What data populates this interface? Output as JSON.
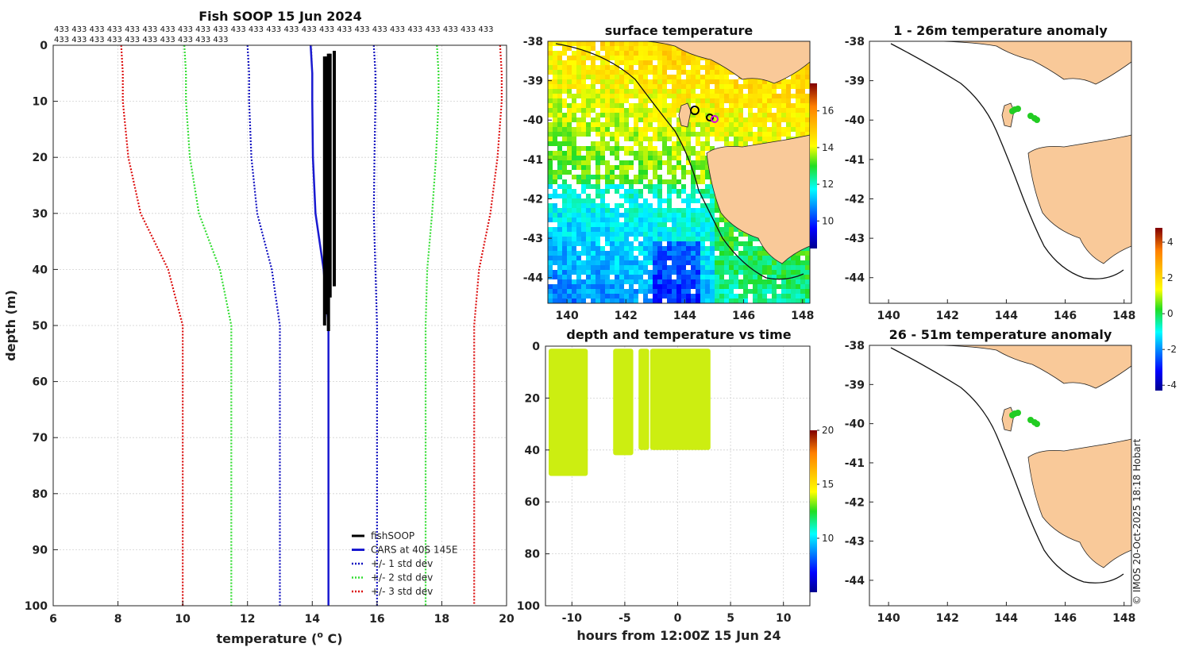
{
  "colors": {
    "fish": "#000000",
    "cars": "#1a1ad0",
    "std1": "#1010c0",
    "std2": "#33dd33",
    "std3": "#dd1111",
    "land": "#f9c999",
    "grid": "#d0d0d0"
  },
  "credit": "© IMOS 20-Oct-2025 18:18 Hobart",
  "chart_data": [
    {
      "type": "line",
      "title": "Fish SOOP 15 Jun 2024",
      "count_label": "433",
      "count_repeat": 35,
      "xlabel": "temperature (",
      "xlabel_sup": "o",
      "xlabel_suffix": " C)",
      "ylabel": "depth (m)",
      "xlim": [
        6,
        20
      ],
      "ylim": [
        0,
        100
      ],
      "xticks": [
        6,
        8,
        10,
        12,
        14,
        16,
        18,
        20
      ],
      "yticks": [
        0,
        10,
        20,
        30,
        40,
        50,
        60,
        70,
        80,
        90,
        100
      ],
      "depth": [
        0,
        5,
        10,
        20,
        30,
        40,
        50,
        60,
        70,
        80,
        90,
        100
      ],
      "cars_mean": [
        13.95,
        14.0,
        14.0,
        14.02,
        14.1,
        14.35,
        14.5,
        14.5,
        14.5,
        14.5,
        14.5,
        14.5
      ],
      "std_offsets": {
        "std1": [
          1.95,
          1.95,
          1.95,
          1.9,
          1.8,
          1.6,
          1.5,
          1.5,
          1.5,
          1.5,
          1.5,
          1.5
        ]
      },
      "legend": [
        "fishSOOP",
        "CARS at 40S 145E",
        "+/- 1 std dev",
        "+/- 2 std dev",
        "+/- 3 std dev"
      ],
      "fishsoop_profiles": [
        {
          "t": 14.38,
          "top": 2,
          "bottom": 50
        },
        {
          "t": 14.5,
          "top": 1.5,
          "bottom": 51
        },
        {
          "t": 14.55,
          "top": 1.5,
          "bottom": 45
        },
        {
          "t": 14.68,
          "top": 1,
          "bottom": 43
        },
        {
          "t": 14.45,
          "top": 2,
          "bottom": 48
        }
      ]
    },
    {
      "type": "heatmap",
      "title": "surface temperature",
      "xticks": [
        140,
        142,
        144,
        146,
        148
      ],
      "yticks": [
        -38,
        -39,
        -40,
        -41,
        -42,
        -43,
        -44
      ],
      "colorbar_ticks": [
        10,
        12,
        14,
        16
      ],
      "colorbar_range": [
        8.5,
        17.5
      ]
    },
    {
      "type": "scatter",
      "title": "depth and temperature vs time",
      "xlabel": "hours from 12:00Z 15 Jun 24",
      "xlim": [
        -12.5,
        12.5
      ],
      "ylim": [
        0,
        100
      ],
      "xticks": [
        -10,
        -5,
        0,
        5,
        10
      ],
      "yticks": [
        0,
        20,
        40,
        60,
        80,
        100
      ],
      "colorbar_ticks": [
        10,
        15,
        20
      ],
      "colorbar_range": [
        5,
        20
      ],
      "blocks": [
        {
          "x0": -12.2,
          "x1": -8.5,
          "y0": 1,
          "y1": 50,
          "temp": 14.3
        },
        {
          "x0": -6.1,
          "x1": -4.2,
          "y0": 1,
          "y1": 42,
          "temp": 14.3
        },
        {
          "x0": -3.7,
          "x1": -2.7,
          "y0": 1,
          "y1": 40,
          "temp": 14.3
        },
        {
          "x0": -2.6,
          "x1": 3.1,
          "y0": 1,
          "y1": 40,
          "temp": 14.4
        }
      ]
    },
    {
      "type": "heatmap",
      "title": "1 - 26m temperature anomaly",
      "xticks": [
        140,
        142,
        144,
        146,
        148
      ],
      "yticks": [
        -38,
        -39,
        -40,
        -41,
        -42,
        -43,
        -44
      ],
      "colorbar_ticks": [
        -4,
        -2,
        0,
        2,
        4
      ],
      "colorbar_range": [
        -4.3,
        4.8
      ]
    },
    {
      "type": "heatmap",
      "title": "26 - 51m temperature anomaly",
      "xticks": [
        140,
        142,
        144,
        146,
        148
      ],
      "yticks": [
        -38,
        -39,
        -40,
        -41,
        -42,
        -43,
        -44
      ]
    }
  ]
}
